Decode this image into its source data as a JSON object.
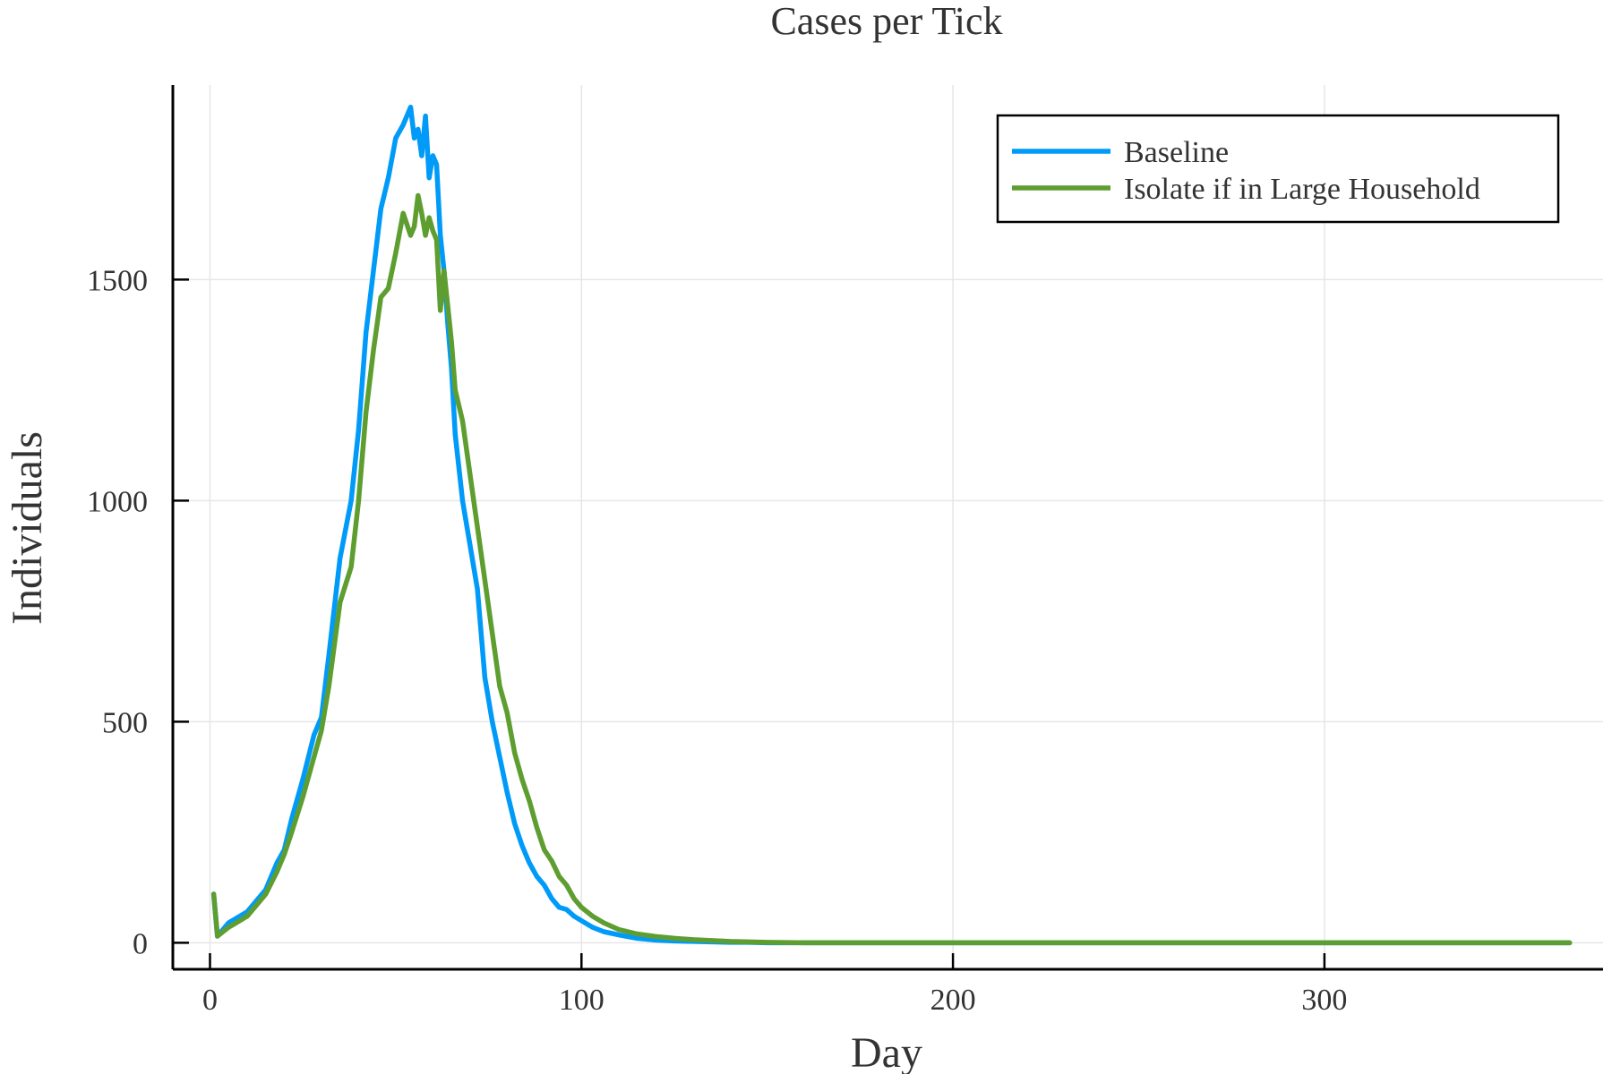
{
  "chart_data": {
    "type": "line",
    "title": "Cases per Tick",
    "xlabel": "Day",
    "ylabel": "Individuals",
    "xlim": [
      -10,
      375
    ],
    "ylim": [
      -60,
      1940
    ],
    "xticks": [
      0,
      100,
      200,
      300
    ],
    "yticks": [
      0,
      500,
      1000,
      1500
    ],
    "grid": true,
    "legend_position": "top-right",
    "colors": {
      "baseline": "#009af9",
      "isolate": "#5e9e30",
      "axis": "#000000",
      "grid": "#e6e6e6",
      "text": "#333333"
    },
    "series": [
      {
        "name": "Baseline",
        "color": "#009af9",
        "x": [
          1,
          2,
          5,
          8,
          10,
          12,
          15,
          18,
          20,
          22,
          25,
          28,
          30,
          32,
          35,
          38,
          40,
          42,
          44,
          46,
          48,
          50,
          52,
          54,
          55,
          56,
          57,
          58,
          59,
          60,
          61,
          62,
          63,
          64,
          65,
          66,
          68,
          70,
          72,
          74,
          76,
          78,
          80,
          82,
          84,
          86,
          88,
          90,
          92,
          94,
          96,
          98,
          100,
          103,
          106,
          110,
          115,
          120,
          125,
          130,
          135,
          140,
          145,
          150,
          160,
          180,
          200,
          250,
          300,
          366
        ],
        "y": [
          110,
          15,
          45,
          60,
          70,
          90,
          120,
          180,
          210,
          280,
          370,
          470,
          510,
          650,
          870,
          1000,
          1160,
          1380,
          1520,
          1660,
          1730,
          1820,
          1850,
          1890,
          1820,
          1840,
          1780,
          1870,
          1730,
          1780,
          1760,
          1600,
          1520,
          1400,
          1300,
          1150,
          1000,
          900,
          800,
          600,
          500,
          420,
          340,
          270,
          220,
          180,
          150,
          130,
          100,
          80,
          75,
          60,
          50,
          35,
          25,
          18,
          10,
          6,
          4,
          3,
          2,
          1,
          1,
          0,
          0,
          0,
          0,
          0,
          0,
          0
        ]
      },
      {
        "name": "Isolate if in Large Household",
        "color": "#5e9e30",
        "x": [
          1,
          2,
          5,
          8,
          10,
          12,
          15,
          18,
          20,
          22,
          25,
          28,
          30,
          32,
          35,
          38,
          40,
          42,
          44,
          46,
          48,
          50,
          52,
          54,
          55,
          56,
          57,
          58,
          59,
          60,
          61,
          62,
          63,
          64,
          65,
          66,
          68,
          70,
          72,
          74,
          76,
          78,
          80,
          82,
          84,
          86,
          88,
          90,
          92,
          94,
          96,
          98,
          100,
          103,
          106,
          110,
          115,
          120,
          125,
          130,
          135,
          140,
          145,
          150,
          160,
          180,
          200,
          250,
          300,
          366
        ],
        "y": [
          110,
          15,
          35,
          50,
          60,
          80,
          110,
          160,
          200,
          250,
          330,
          420,
          480,
          580,
          770,
          850,
          1000,
          1200,
          1340,
          1460,
          1480,
          1560,
          1650,
          1600,
          1620,
          1690,
          1650,
          1600,
          1640,
          1610,
          1590,
          1430,
          1520,
          1440,
          1360,
          1250,
          1180,
          1060,
          940,
          820,
          700,
          580,
          520,
          430,
          370,
          320,
          260,
          210,
          185,
          150,
          130,
          100,
          80,
          60,
          45,
          30,
          20,
          14,
          10,
          7,
          5,
          3,
          2,
          1,
          0,
          0,
          0,
          0,
          0,
          0
        ]
      }
    ]
  }
}
